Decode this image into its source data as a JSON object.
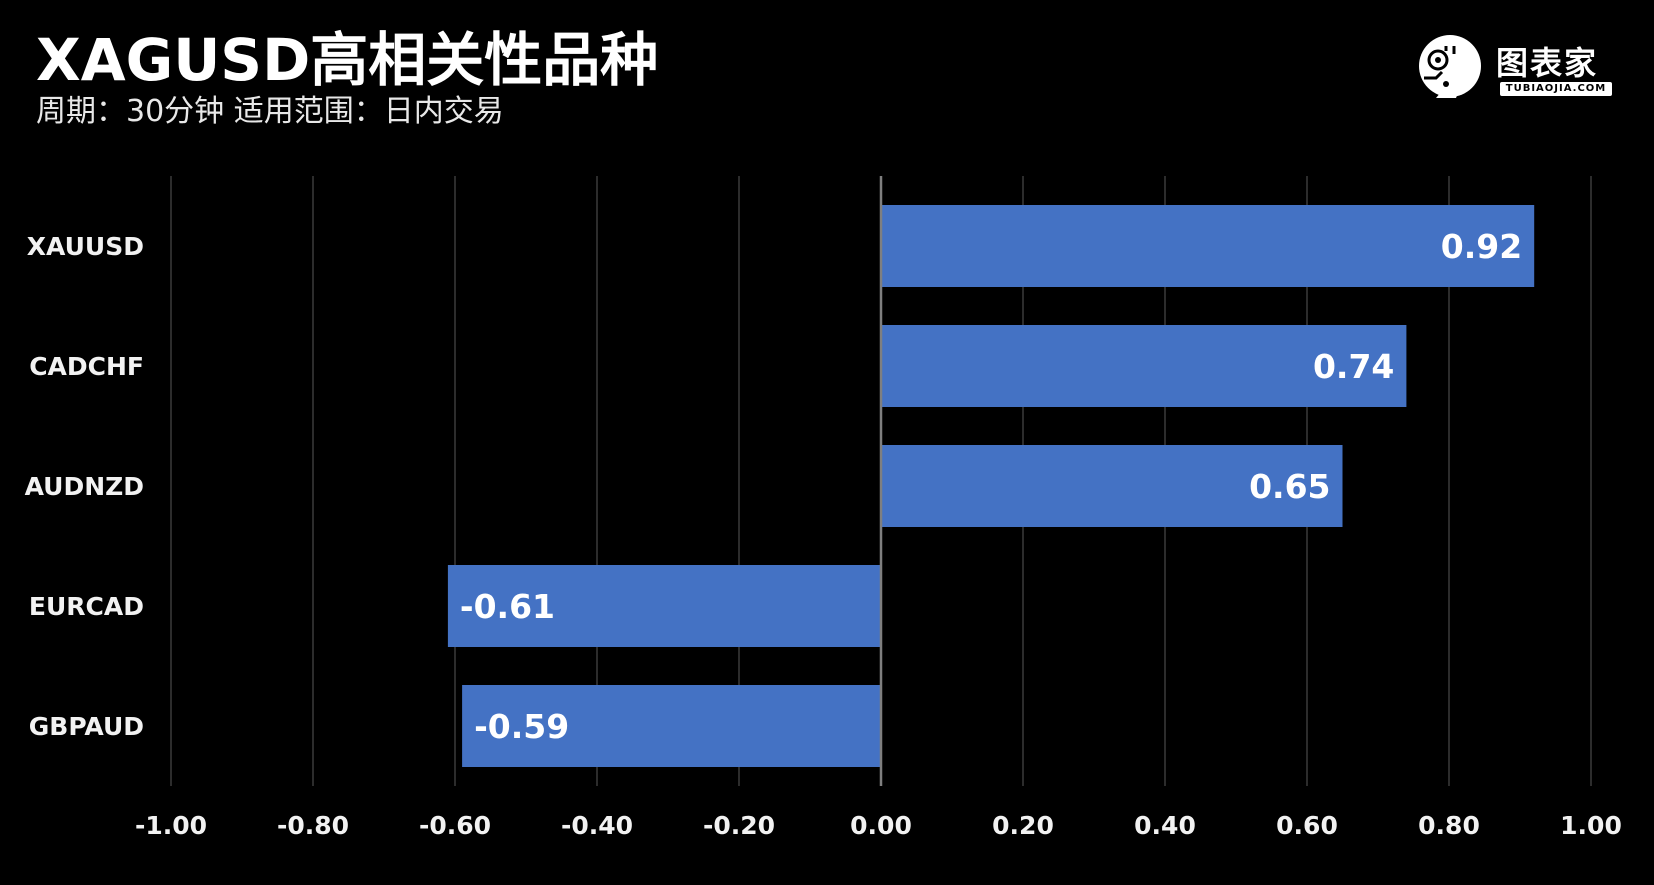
{
  "header": {
    "title": "XAGUSD高相关性品种",
    "subtitle": "周期：30分钟  适用范围：日内交易"
  },
  "logo": {
    "text": "图表家",
    "sub": "TUBIAOJIA.COM",
    "icon": "head-profile-icon"
  },
  "colors": {
    "background": "#000000",
    "bar": "#4472c4",
    "grid": "#3a3a3a",
    "zero_line": "#7f7f7f",
    "text": "#f2f2f2"
  },
  "chart_data": {
    "type": "bar",
    "orientation": "horizontal",
    "categories": [
      "XAUUSD",
      "CADCHF",
      "AUDNZD",
      "EURCAD",
      "GBPAUD"
    ],
    "values": [
      0.92,
      0.74,
      0.65,
      -0.61,
      -0.59
    ],
    "value_labels": [
      "0.92",
      "0.74",
      "0.65",
      "-0.61",
      "-0.59"
    ],
    "xlim": [
      -1.0,
      1.0
    ],
    "ticks": [
      "-1.00",
      "-0.80",
      "-0.60",
      "-0.40",
      "-0.20",
      "0.00",
      "0.20",
      "0.40",
      "0.60",
      "0.80",
      "1.00"
    ],
    "tick_values": [
      -1.0,
      -0.8,
      -0.6,
      -0.4,
      -0.2,
      0.0,
      0.2,
      0.4,
      0.6,
      0.8,
      1.0
    ],
    "grid": true,
    "legend": "none",
    "title": "",
    "xlabel": "",
    "ylabel": ""
  }
}
